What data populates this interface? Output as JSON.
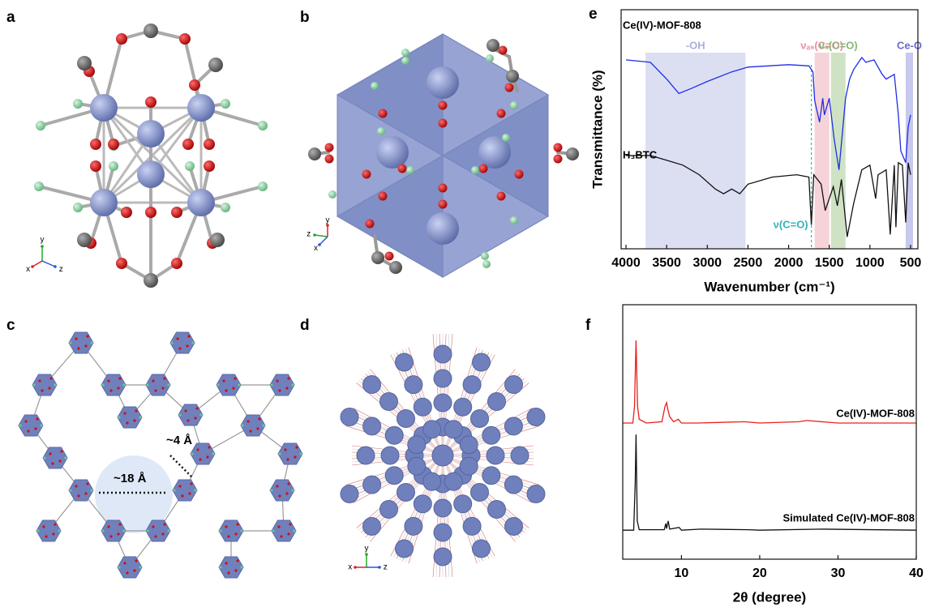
{
  "panels": [
    {
      "label": "a",
      "axes": [
        "y",
        "x",
        "z"
      ]
    },
    {
      "label": "b",
      "axes": [
        "z",
        "y",
        "x"
      ]
    },
    {
      "label": "c",
      "annotations": [
        "~4 Å",
        "~18 Å"
      ]
    },
    {
      "label": "d",
      "axes": [
        "y",
        "x",
        "z"
      ]
    },
    {
      "label": "e"
    },
    {
      "label": "f"
    }
  ],
  "chart_data": [
    {
      "type": "line",
      "xlabel": "Wavenumber (cm⁻¹)",
      "ylabel": "Transmittance (%)",
      "xlim": [
        4060,
        410
      ],
      "xticks": [
        4000,
        3500,
        3000,
        2500,
        2000,
        1500,
        1000,
        500
      ],
      "ylim": [
        0,
        100
      ],
      "bands": [
        {
          "label": "-OH",
          "x": [
            3760,
            2530
          ],
          "color": "#dcdff2",
          "text_color": "#a9b0dc"
        },
        {
          "label": "νₐₛ(C=O)",
          "x": [
            1680,
            1500
          ],
          "color": "#f6d3d8",
          "text_color": "#e8909f"
        },
        {
          "label": "νₛ(C=O)",
          "x": [
            1480,
            1300
          ],
          "color": "#cfe3c4",
          "text_color": "#86b874"
        },
        {
          "label": "Ce-O",
          "x": [
            560,
            470
          ],
          "color": "#c7c9ee",
          "text_color": "#6a6ad0"
        }
      ],
      "markers": [
        {
          "label": "ν(C=O)",
          "x": 1720,
          "color": "#35b3b3"
        }
      ],
      "series": [
        {
          "name": "Ce(IV)-MOF-808",
          "color": "#1f2ee6",
          "x": [
            4000,
            3700,
            3500,
            3350,
            3200,
            3000,
            2700,
            2500,
            2000,
            1750,
            1700,
            1680,
            1620,
            1580,
            1560,
            1500,
            1440,
            1380,
            1300,
            1250,
            1200,
            1100,
            1050,
            950,
            850,
            800,
            700,
            650,
            620,
            560,
            530,
            500
          ],
          "values": [
            79,
            78,
            71,
            65,
            67,
            70,
            74,
            76,
            77,
            76.5,
            74,
            62,
            53,
            63,
            56,
            63,
            46,
            33,
            63,
            71,
            75,
            80,
            78,
            79,
            73,
            71,
            73,
            56,
            41,
            36,
            51,
            56
          ]
        },
        {
          "name": "H₃BTC",
          "color": "#111111",
          "x": [
            4000,
            3700,
            3500,
            3300,
            3100,
            2900,
            2800,
            2700,
            2600,
            2500,
            2200,
            1900,
            1750,
            1720,
            1690,
            1600,
            1550,
            1450,
            1400,
            1350,
            1280,
            1200,
            1100,
            1000,
            930,
            900,
            800,
            750,
            700,
            680,
            650,
            600,
            560,
            530,
            500
          ],
          "values": [
            39,
            39,
            37,
            35,
            31,
            25,
            23,
            25,
            23,
            27,
            30,
            31,
            30,
            10,
            31,
            27,
            16,
            26,
            18,
            29,
            5,
            19,
            33,
            35,
            21,
            31,
            33,
            6,
            35,
            9,
            36,
            35,
            11,
            36,
            31
          ]
        }
      ]
    },
    {
      "type": "line",
      "xlabel": "2θ (degree)",
      "xlim": [
        2.5,
        40
      ],
      "xticks": [
        10,
        20,
        30,
        40
      ],
      "ylim": [
        0,
        100
      ],
      "series": [
        {
          "name": "Ce(IV)-MOF-808",
          "color": "#e8201c",
          "x": [
            2.5,
            3.8,
            4.0,
            4.2,
            4.4,
            4.6,
            5.5,
            7.5,
            7.9,
            8.1,
            8.25,
            8.5,
            9.0,
            9.6,
            10,
            12,
            18,
            20,
            25,
            26,
            30,
            40
          ],
          "values": [
            53.5,
            53.5,
            60,
            86,
            60,
            55,
            53.5,
            54,
            60,
            61.5,
            59,
            56,
            54,
            55,
            53.5,
            53.5,
            54,
            53.5,
            54,
            54.5,
            53.5,
            53.5
          ]
        },
        {
          "name": "Simulated Ce(IV)-MOF-808",
          "color": "#111111",
          "x": [
            2.5,
            3.9,
            4.1,
            4.2,
            4.35,
            4.6,
            7.8,
            8.0,
            8.1,
            8.3,
            8.5,
            9.7,
            10,
            12.5,
            18.5,
            20,
            28,
            40
          ],
          "values": [
            11.4,
            11.4,
            30,
            49,
            15,
            11.6,
            11.6,
            14,
            12,
            15,
            11.8,
            12.5,
            11.4,
            11.8,
            11.6,
            11.4,
            11.8,
            11.4
          ]
        }
      ]
    }
  ]
}
